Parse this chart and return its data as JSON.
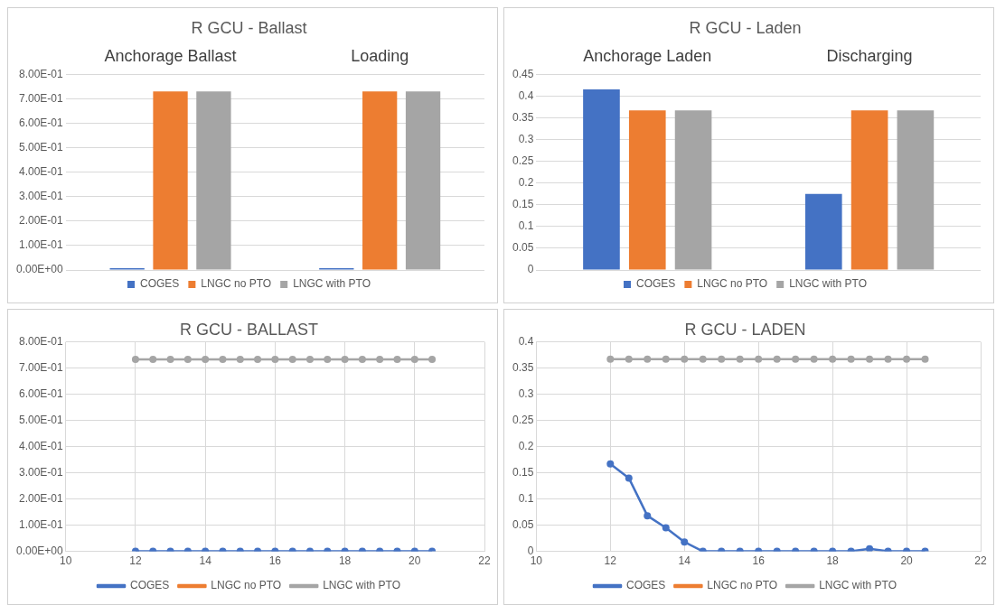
{
  "chart_data": [
    {
      "type": "bar",
      "title": "R GCU - Ballast",
      "categories": [
        "Anchorage Ballast",
        "Loading"
      ],
      "series": [
        {
          "name": "COGES",
          "color": "#4472c4",
          "values": [
            0.003,
            0.003
          ]
        },
        {
          "name": "LNGC no PTO",
          "color": "#ed7d31",
          "values": [
            0.73,
            0.73
          ]
        },
        {
          "name": "LNGC with PTO",
          "color": "#a5a5a5",
          "values": [
            0.73,
            0.73
          ]
        }
      ],
      "ylim": [
        0,
        0.8
      ],
      "yticks": [
        {
          "value": 0,
          "label": "0.00E+00"
        },
        {
          "value": 0.1,
          "label": "1.00E-01"
        },
        {
          "value": 0.2,
          "label": "2.00E-01"
        },
        {
          "value": 0.3,
          "label": "3.00E-01"
        },
        {
          "value": 0.4,
          "label": "4.00E-01"
        },
        {
          "value": 0.5,
          "label": "5.00E-01"
        },
        {
          "value": 0.6,
          "label": "6.00E-01"
        },
        {
          "value": 0.7,
          "label": "7.00E-01"
        },
        {
          "value": 0.8,
          "label": "8.00E-01"
        }
      ],
      "grid": "y",
      "legend": "bottom"
    },
    {
      "type": "bar",
      "title": "R GCU - Laden",
      "categories": [
        "Anchorage Laden",
        "Discharging"
      ],
      "series": [
        {
          "name": "COGES",
          "color": "#4472c4",
          "values": [
            0.415,
            0.175
          ]
        },
        {
          "name": "LNGC no PTO",
          "color": "#ed7d31",
          "values": [
            0.367,
            0.367
          ]
        },
        {
          "name": "LNGC with PTO",
          "color": "#a5a5a5",
          "values": [
            0.367,
            0.367
          ]
        }
      ],
      "ylim": [
        0,
        0.45
      ],
      "yticks": [
        0,
        0.05,
        0.1,
        0.15,
        0.2,
        0.25,
        0.3,
        0.35,
        0.4,
        0.45
      ],
      "grid": "y",
      "legend": "bottom"
    },
    {
      "type": "line",
      "title": "R GCU - BALLAST",
      "x": [
        12,
        12.5,
        13,
        13.5,
        14,
        14.5,
        15,
        15.5,
        16,
        16.5,
        17,
        17.5,
        18,
        18.5,
        19,
        19.5,
        20,
        20.5
      ],
      "series": [
        {
          "name": "COGES",
          "color": "#4472c4",
          "values": [
            0,
            0,
            0,
            0,
            0,
            0,
            0,
            0,
            0,
            0,
            0,
            0,
            0,
            0,
            0,
            0,
            0,
            0
          ]
        },
        {
          "name": "LNGC no PTO",
          "color": "#ed7d31",
          "values": [
            null,
            null,
            null,
            null,
            null,
            null,
            null,
            null,
            null,
            null,
            null,
            null,
            null,
            null,
            null,
            null,
            null,
            null
          ]
        },
        {
          "name": "LNGC with PTO",
          "color": "#a5a5a5",
          "values": [
            0.733,
            0.733,
            0.733,
            0.733,
            0.733,
            0.733,
            0.733,
            0.733,
            0.733,
            0.733,
            0.733,
            0.733,
            0.733,
            0.733,
            0.733,
            0.733,
            0.733,
            0.733
          ]
        }
      ],
      "xlim": [
        10,
        22
      ],
      "xticks": [
        10,
        12,
        14,
        16,
        18,
        20,
        22
      ],
      "ylim": [
        0,
        0.8
      ],
      "yticks": [
        {
          "value": 0,
          "label": "0.00E+00"
        },
        {
          "value": 0.1,
          "label": "1.00E-01"
        },
        {
          "value": 0.2,
          "label": "2.00E-01"
        },
        {
          "value": 0.3,
          "label": "3.00E-01"
        },
        {
          "value": 0.4,
          "label": "4.00E-01"
        },
        {
          "value": 0.5,
          "label": "5.00E-01"
        },
        {
          "value": 0.6,
          "label": "6.00E-01"
        },
        {
          "value": 0.7,
          "label": "7.00E-01"
        },
        {
          "value": 0.8,
          "label": "8.00E-01"
        }
      ],
      "grid": true,
      "legend": "bottom",
      "marker": "circle"
    },
    {
      "type": "line",
      "title": "R GCU - LADEN",
      "x": [
        12,
        12.5,
        13,
        13.5,
        14,
        14.5,
        15,
        15.5,
        16,
        16.5,
        17,
        17.5,
        18,
        18.5,
        19,
        19.5,
        20,
        20.5
      ],
      "series": [
        {
          "name": "COGES",
          "color": "#4472c4",
          "values": [
            0.167,
            0.14,
            0.068,
            0.045,
            0.018,
            0,
            0,
            0,
            0,
            0,
            0,
            0,
            0,
            0,
            0.005,
            0,
            0,
            0
          ]
        },
        {
          "name": "LNGC no PTO",
          "color": "#ed7d31",
          "values": [
            null,
            null,
            null,
            null,
            null,
            null,
            null,
            null,
            null,
            null,
            null,
            null,
            null,
            null,
            null,
            null,
            null,
            null
          ]
        },
        {
          "name": "LNGC with PTO",
          "color": "#a5a5a5",
          "values": [
            0.367,
            0.367,
            0.367,
            0.367,
            0.367,
            0.367,
            0.367,
            0.367,
            0.367,
            0.367,
            0.367,
            0.367,
            0.367,
            0.367,
            0.367,
            0.367,
            0.367,
            0.367
          ]
        }
      ],
      "xlim": [
        10,
        22
      ],
      "xticks": [
        10,
        12,
        14,
        16,
        18,
        20,
        22
      ],
      "ylim": [
        0,
        0.4
      ],
      "yticks": [
        0,
        0.05,
        0.1,
        0.15,
        0.2,
        0.25,
        0.3,
        0.35,
        0.4
      ],
      "grid": true,
      "legend": "bottom",
      "marker": "circle"
    }
  ]
}
